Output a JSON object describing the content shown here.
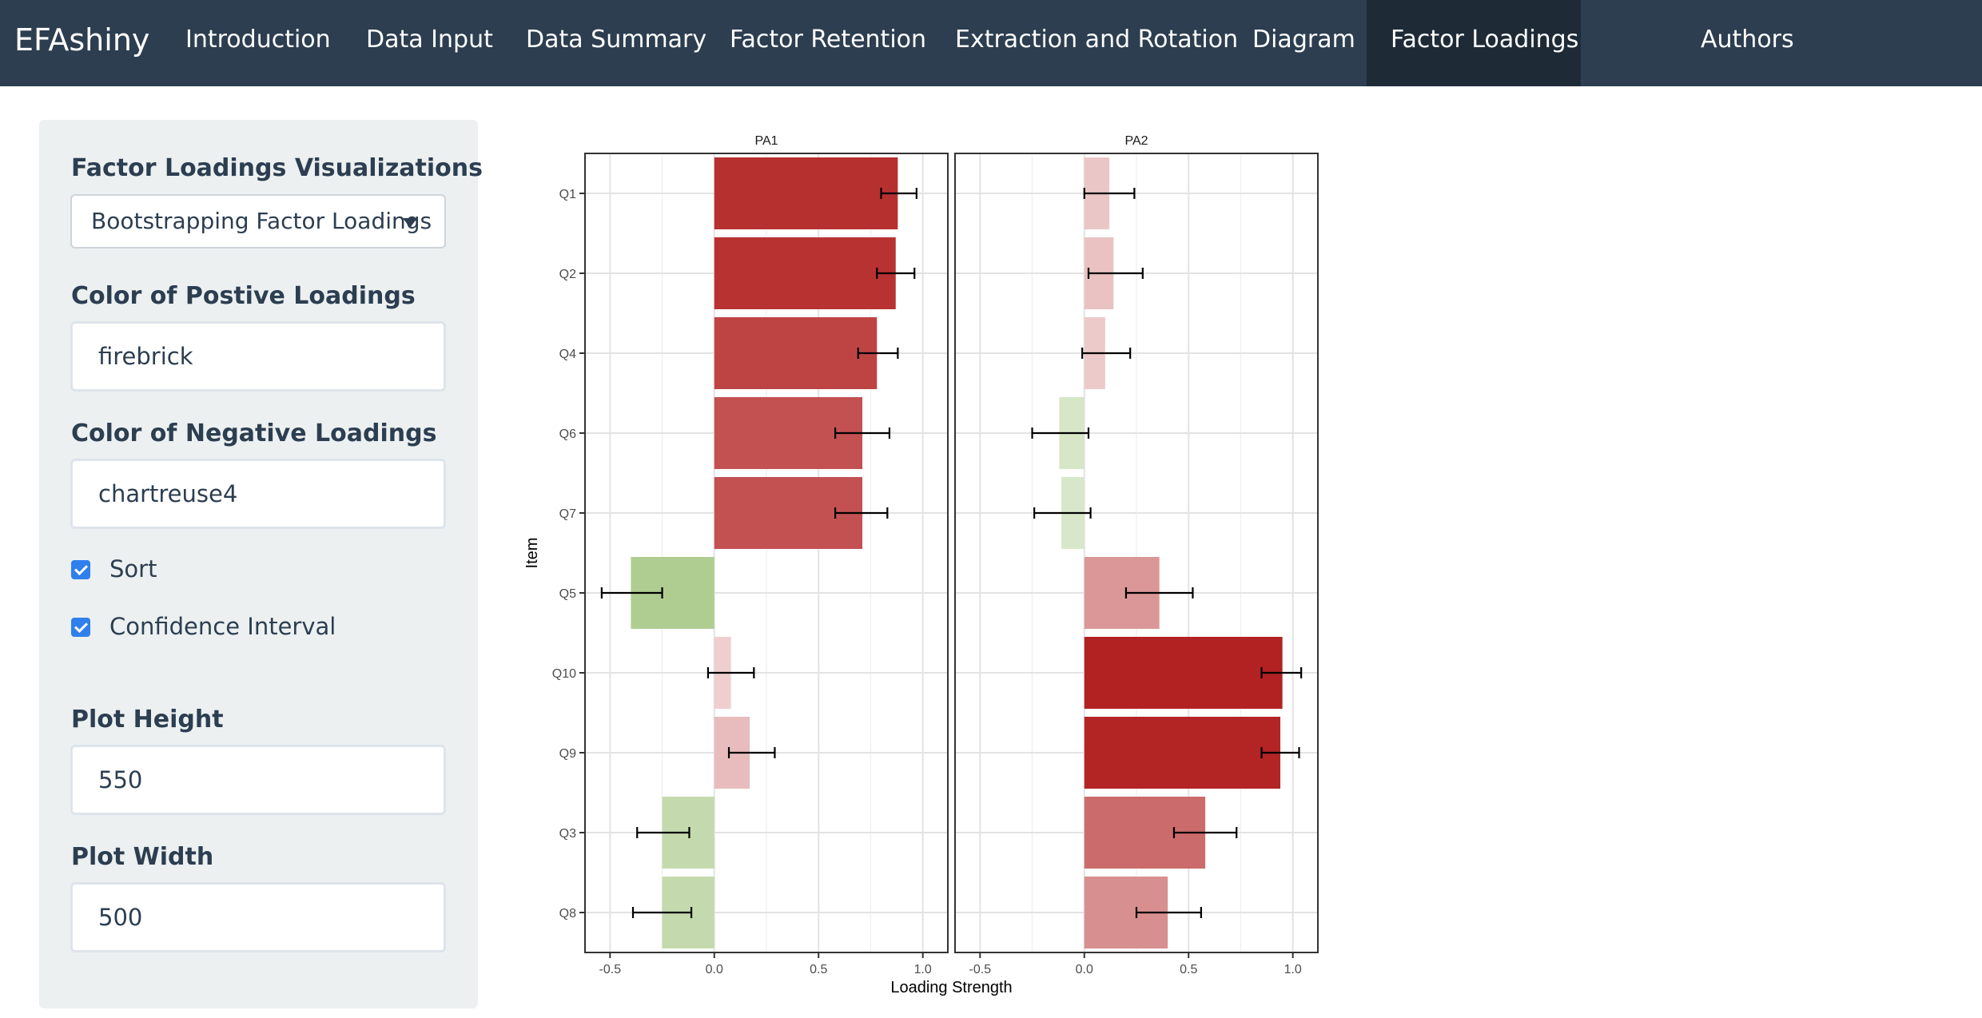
{
  "navbar": {
    "brand": "EFAshiny",
    "items": [
      {
        "label": "Introduction",
        "active": false
      },
      {
        "label": "Data Input",
        "active": false
      },
      {
        "label": "Data Summary",
        "active": false
      },
      {
        "label": "Factor Retention",
        "active": false
      },
      {
        "label": "Extraction and Rotation",
        "active": false
      },
      {
        "label": "Diagram",
        "active": false
      },
      {
        "label": "Factor Loadings",
        "active": true
      },
      {
        "label": "Authors",
        "active": false
      }
    ]
  },
  "sidebar": {
    "viz_label": "Factor Loadings Visualizations",
    "viz_value": "Bootstrapping Factor Loadings",
    "pos_label": "Color of Postive Loadings",
    "pos_value": "firebrick",
    "neg_label": "Color of Negative Loadings",
    "neg_value": "chartreuse4",
    "sort_label": "Sort",
    "sort_checked": true,
    "ci_label": "Confidence Interval",
    "ci_checked": true,
    "height_label": "Plot Height",
    "height_value": "550",
    "width_label": "Plot Width",
    "width_value": "500"
  },
  "chart_data": {
    "type": "bar",
    "orientation": "horizontal",
    "facets": [
      "PA1",
      "PA2"
    ],
    "categories": [
      "Q1",
      "Q2",
      "Q4",
      "Q6",
      "Q7",
      "Q5",
      "Q10",
      "Q9",
      "Q3",
      "Q8"
    ],
    "series": [
      {
        "name": "PA1",
        "values": [
          0.88,
          0.87,
          0.78,
          0.71,
          0.71,
          -0.4,
          0.08,
          0.17,
          -0.25,
          -0.25
        ],
        "ci_low": [
          0.8,
          0.78,
          0.69,
          0.58,
          0.58,
          -0.54,
          -0.03,
          0.07,
          -0.37,
          -0.39
        ],
        "ci_high": [
          0.97,
          0.96,
          0.88,
          0.84,
          0.83,
          -0.25,
          0.19,
          0.29,
          -0.12,
          -0.11
        ]
      },
      {
        "name": "PA2",
        "values": [
          0.12,
          0.14,
          0.1,
          -0.12,
          -0.11,
          0.36,
          0.95,
          0.94,
          0.58,
          0.4
        ],
        "ci_low": [
          0.0,
          0.02,
          -0.01,
          -0.25,
          -0.24,
          0.2,
          0.85,
          0.85,
          0.43,
          0.25
        ],
        "ci_high": [
          0.24,
          0.28,
          0.22,
          0.02,
          0.03,
          0.52,
          1.04,
          1.03,
          0.73,
          0.56
        ]
      }
    ],
    "xlabel": "Loading Strength",
    "ylabel": "Item",
    "xlim": [
      -0.62,
      1.12
    ],
    "xticks": [
      "-0.5",
      "0.0",
      "0.5",
      "1.0"
    ],
    "xtick_values": [
      -0.5,
      0.0,
      0.5,
      1.0
    ],
    "positive_color": "#b22222",
    "negative_color": "#458b00",
    "grid": true,
    "background": "#ffffff"
  }
}
